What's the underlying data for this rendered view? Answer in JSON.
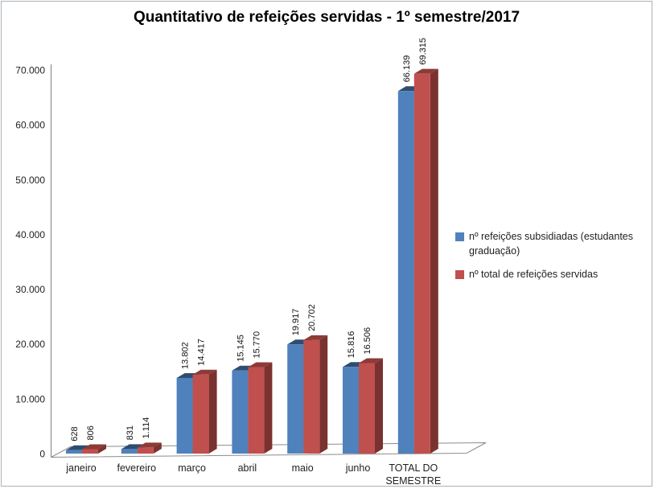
{
  "window": {
    "background": "#ffffff",
    "border_color": "#a9b1b8"
  },
  "chart_data": {
    "type": "bar",
    "style": "3d-clustered-column",
    "title": "Quantitativo de refeições servidas - 1º semestre/2017",
    "categories": [
      "janeiro",
      "fevereiro",
      "março",
      "abril",
      "maio",
      "junho",
      "TOTAL DO SEMESTRE"
    ],
    "series": [
      {
        "name": "nº refeições subsidiadas (estudantes graduação)",
        "color": "#4f81bd",
        "color_top": "#2e4d71",
        "color_side": "#3a6190",
        "values": [
          628,
          831,
          13802,
          15145,
          19917,
          15816,
          66139
        ],
        "labels": [
          "628",
          "831",
          "13.802",
          "15.145",
          "19.917",
          "15.816",
          "66.139"
        ]
      },
      {
        "name": "nº total de refeições servidas",
        "color": "#c0504d",
        "color_top": "#8e3a37",
        "color_side": "#7a3230",
        "values": [
          806,
          1114,
          14417,
          15770,
          20702,
          16506,
          69315
        ],
        "labels": [
          "806",
          "1.114",
          "14.417",
          "15.770",
          "20.702",
          "16.506",
          "69.315"
        ]
      }
    ],
    "yaxis": {
      "min": 0,
      "max": 70000,
      "step": 10000,
      "tick_labels": [
        "0",
        "10.000",
        "20.000",
        "30.000",
        "40.000",
        "50.000",
        "60.000",
        "70.000"
      ]
    },
    "legend_position": "right",
    "gridlines": false,
    "value_labels_rotated": true,
    "axis_color": "#7f7f7f",
    "floor_stroke": "#8c8c8c",
    "text_color": "#1f1f1f"
  }
}
